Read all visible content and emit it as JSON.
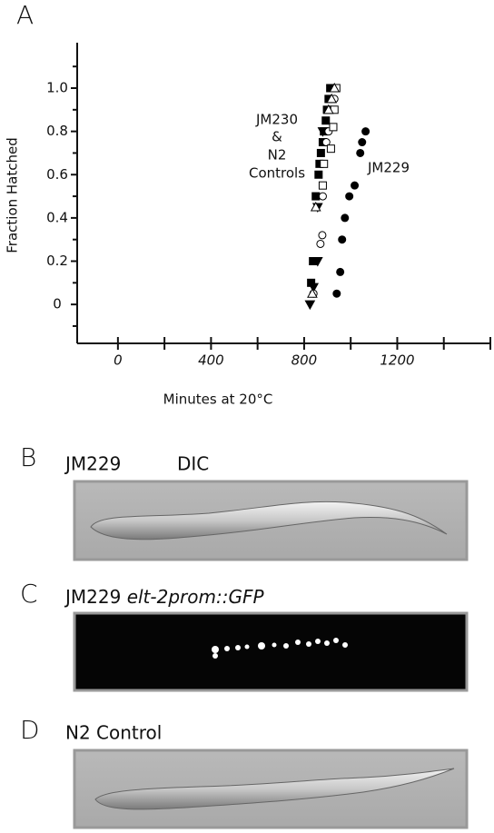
{
  "chart_data": {
    "type": "scatter",
    "panel_label": "A",
    "ylabel": "Fraction Hatched",
    "xlabel": "Minutes at 20°C",
    "xlim": [
      -175,
      1600
    ],
    "xticks": [
      0,
      400,
      800,
      1200
    ],
    "xminor_ticks": [
      200,
      600,
      1000,
      1400,
      1600
    ],
    "ylim": [
      -0.18,
      1.21
    ],
    "yticks": [
      0,
      0.2,
      0.4,
      0.6,
      0.8,
      {
        "value": 1,
        "label": "1.0"
      }
    ],
    "yminor_ticks": [
      -0.1,
      0.1,
      0.3,
      0.5,
      0.7,
      0.9,
      1.1
    ],
    "annotations": [
      "JM230",
      "&",
      "N2",
      "Controls",
      "JM229"
    ],
    "series": [
      {
        "marker": "circle",
        "filled": true,
        "color": "#000000",
        "x": [
          940,
          955,
          963,
          975,
          994,
          1017,
          1041,
          1049,
          1064
        ],
        "y": [
          0.05,
          0.15,
          0.3,
          0.4,
          0.5,
          0.55,
          0.7,
          0.75,
          0.8
        ]
      },
      {
        "marker": "square",
        "filled": true,
        "color": "#000000",
        "x": [
          830,
          838,
          850,
          862,
          866,
          872,
          880,
          885,
          893,
          898,
          905,
          912
        ],
        "y": [
          0.1,
          0.2,
          0.5,
          0.6,
          0.65,
          0.7,
          0.75,
          0.8,
          0.85,
          0.9,
          0.95,
          1.0
        ]
      },
      {
        "marker": "triangle-down",
        "filled": true,
        "color": "#000000",
        "x": [
          825,
          840,
          858,
          858,
          880
        ],
        "y": [
          0,
          0.08,
          0.2,
          0.45,
          0.8
        ]
      },
      {
        "marker": "circle",
        "filled": false,
        "color": "#000000",
        "x": [
          840,
          870,
          878,
          880,
          895,
          905,
          918,
          930
        ],
        "y": [
          0.05,
          0.28,
          0.32,
          0.5,
          0.75,
          0.8,
          0.9,
          0.95
        ]
      },
      {
        "marker": "square",
        "filled": false,
        "color": "#000000",
        "x": [
          880,
          885,
          915,
          925,
          930,
          938
        ],
        "y": [
          0.55,
          0.65,
          0.72,
          0.82,
          0.9,
          1.0
        ]
      },
      {
        "marker": "triangle",
        "filled": false,
        "color": "#000000",
        "x": [
          835,
          850,
          905,
          918,
          930
        ],
        "y": [
          0.05,
          0.45,
          0.9,
          0.95,
          1.0
        ]
      }
    ]
  },
  "panels": {
    "b": {
      "label": "B",
      "strain": "JM229",
      "method": "DIC"
    },
    "c": {
      "label": "C",
      "strain": "JM229",
      "reporter": "elt-2prom::GFP"
    },
    "d": {
      "label": "D",
      "text": "N2 Control"
    }
  }
}
